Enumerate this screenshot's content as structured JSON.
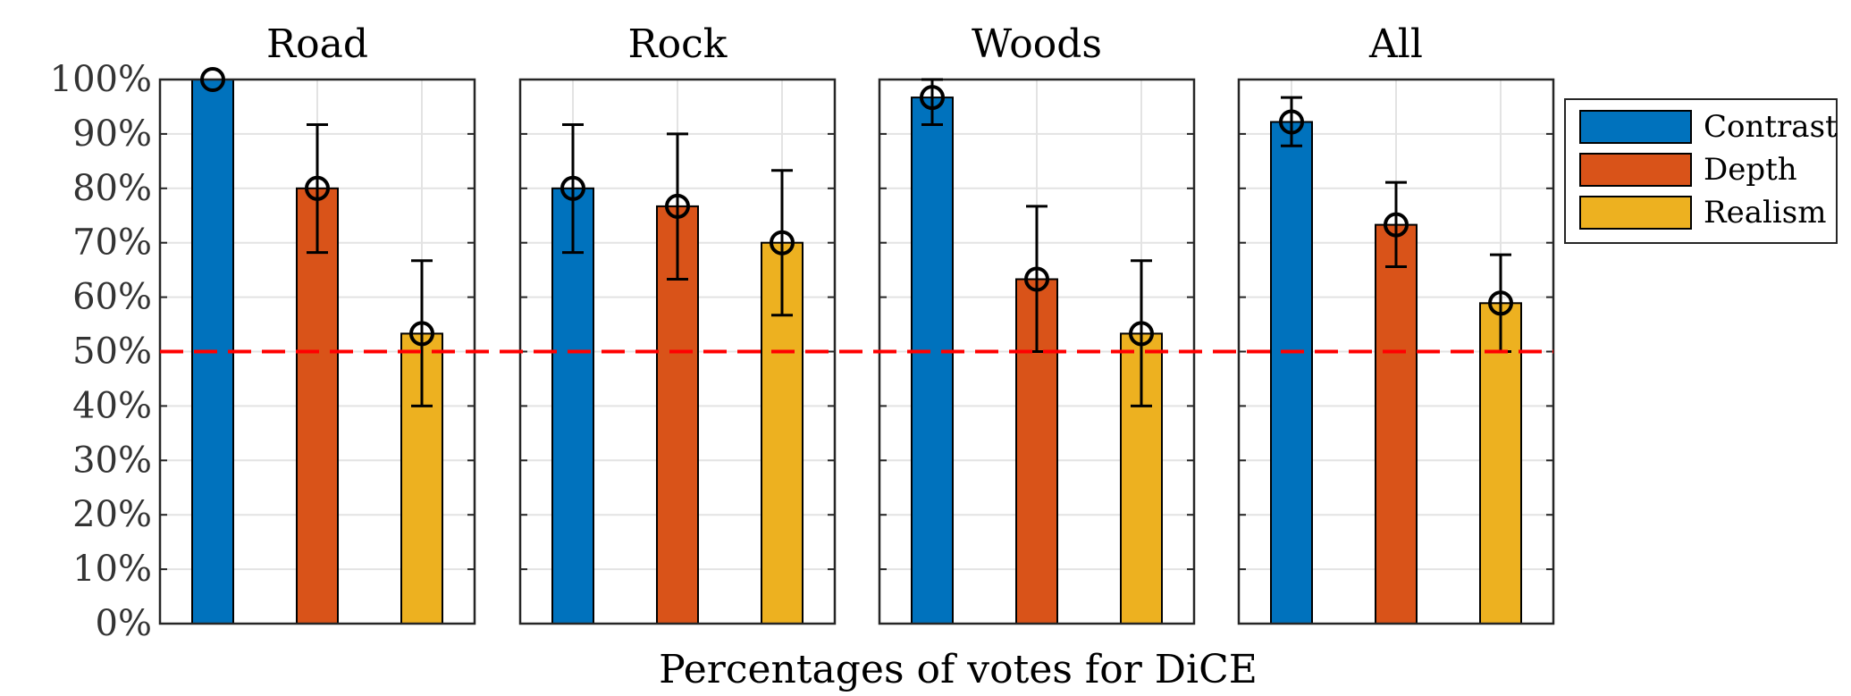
{
  "chart_data": {
    "type": "bar",
    "xlabel": "Percentages of votes for DiCE",
    "ylabel": "",
    "ylim": [
      0,
      100
    ],
    "yticks": [
      "0%",
      "10%",
      "20%",
      "30%",
      "40%",
      "50%",
      "60%",
      "70%",
      "80%",
      "90%",
      "100%"
    ],
    "grid": true,
    "legend_position": "right",
    "reference_line": {
      "y": 50,
      "color": "#ff0000",
      "style": "dashed"
    },
    "series": [
      {
        "name": "Contrast",
        "color": "#0072BD"
      },
      {
        "name": "Depth",
        "color": "#D95319"
      },
      {
        "name": "Realism",
        "color": "#EDB120"
      }
    ],
    "panels": [
      {
        "title": "Road",
        "values": [
          100,
          80,
          53.3
        ],
        "error_low": [
          100,
          68.2,
          40
        ],
        "error_high": [
          100,
          91.7,
          66.7
        ]
      },
      {
        "title": "Rock",
        "values": [
          80,
          76.7,
          70
        ],
        "error_low": [
          68.2,
          63.3,
          56.7
        ],
        "error_high": [
          91.7,
          90,
          83.3
        ]
      },
      {
        "title": "Woods",
        "values": [
          96.7,
          63.3,
          53.3
        ],
        "error_low": [
          91.7,
          50,
          40
        ],
        "error_high": [
          100,
          76.7,
          66.7
        ]
      },
      {
        "title": "All",
        "values": [
          92.2,
          73.3,
          58.9
        ],
        "error_low": [
          87.8,
          65.6,
          50
        ],
        "error_high": [
          96.7,
          81.1,
          67.8
        ]
      }
    ]
  }
}
